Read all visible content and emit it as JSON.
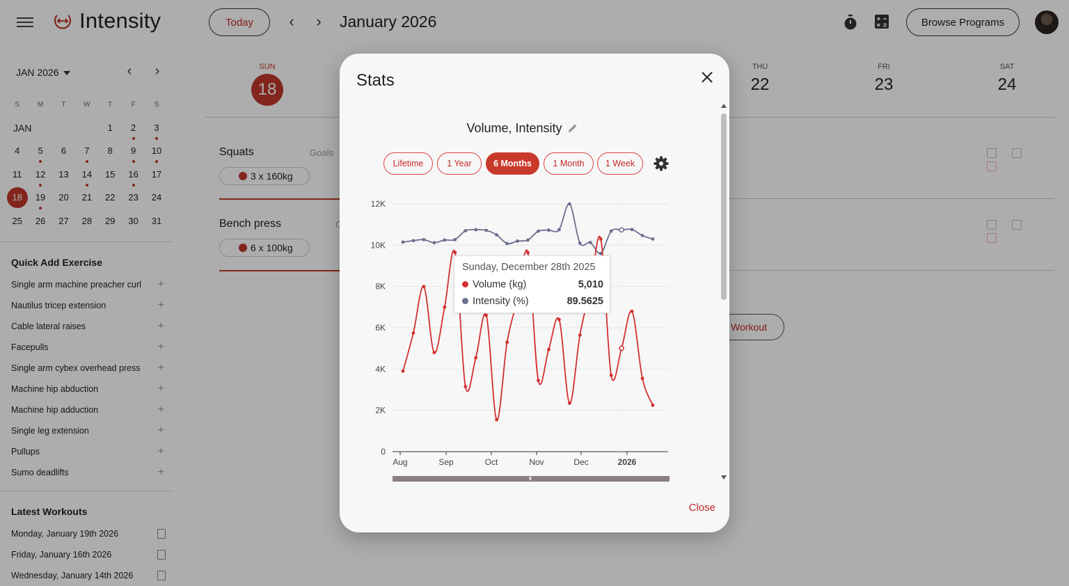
{
  "app": {
    "title": "Intensity",
    "today_label": "Today",
    "month_title": "January 2026",
    "browse_label": "Browse Programs"
  },
  "mini_calendar": {
    "month_label": "JAN 2026",
    "weekdays": [
      "S",
      "M",
      "T",
      "W",
      "T",
      "F",
      "S"
    ],
    "row_label": "JAN",
    "weeks": [
      [
        {
          "d": ""
        },
        {
          "d": ""
        },
        {
          "d": ""
        },
        {
          "d": ""
        },
        {
          "d": "1"
        },
        {
          "d": "2",
          "dot": true
        },
        {
          "d": "3",
          "dot": true
        }
      ],
      [
        {
          "d": "4"
        },
        {
          "d": "5",
          "dot": true
        },
        {
          "d": "6"
        },
        {
          "d": "7",
          "dot": true
        },
        {
          "d": "8"
        },
        {
          "d": "9",
          "dot": true
        },
        {
          "d": "10",
          "dot": true
        }
      ],
      [
        {
          "d": "11"
        },
        {
          "d": "12",
          "dot": true
        },
        {
          "d": "13"
        },
        {
          "d": "14",
          "dot": true
        },
        {
          "d": "15"
        },
        {
          "d": "16",
          "dot": true
        },
        {
          "d": "17"
        }
      ],
      [
        {
          "d": "18",
          "selected": true
        },
        {
          "d": "19",
          "dot": true
        },
        {
          "d": "20"
        },
        {
          "d": "21"
        },
        {
          "d": "22"
        },
        {
          "d": "23"
        },
        {
          "d": "24"
        }
      ],
      [
        {
          "d": "25"
        },
        {
          "d": "26"
        },
        {
          "d": "27"
        },
        {
          "d": "28"
        },
        {
          "d": "29"
        },
        {
          "d": "30"
        },
        {
          "d": "31"
        }
      ]
    ]
  },
  "quick_add": {
    "title": "Quick Add Exercise",
    "items": [
      "Single arm machine preacher curl",
      "Nautilus tricep extension",
      "Cable lateral raises",
      "Facepulls",
      "Single arm cybex overhead press",
      "Machine hip abduction",
      "Machine hip adduction",
      "Single leg extension",
      "Pullups",
      "Sumo deadlifts"
    ]
  },
  "latest_workouts": {
    "title": "Latest Workouts",
    "items": [
      "Monday, January 19th 2026",
      "Friday, January 16th 2026",
      "Wednesday, January 14th 2026"
    ]
  },
  "week_days": [
    {
      "name": "SUN",
      "num": "18",
      "today": true
    },
    {
      "name": "THU",
      "num": "22"
    },
    {
      "name": "FRI",
      "num": "23"
    },
    {
      "name": "SAT",
      "num": "24"
    }
  ],
  "exercises": [
    {
      "name": "Squats",
      "goals": "Goals",
      "set": "3 x 160kg"
    },
    {
      "name": "Bench press",
      "goals": "G",
      "set": "6 x 100kg"
    }
  ],
  "workout_btn": "Workout",
  "modal": {
    "title": "Stats",
    "chart_title": "Volume, Intensity",
    "ranges": [
      "Lifetime",
      "1 Year",
      "6 Months",
      "1 Month",
      "1 Week"
    ],
    "active_range": "6 Months",
    "close_label": "Close",
    "tooltip": {
      "date": "Sunday, December 28th 2025",
      "rows": [
        {
          "label": "Volume (kg)",
          "value": "5,010",
          "color": "#d32f2f"
        },
        {
          "label": "Intensity (%)",
          "value": "89.5625",
          "color": "#6b6f8f"
        }
      ]
    }
  },
  "chart_data": {
    "type": "line",
    "x_labels": [
      "Aug",
      "Sep",
      "Oct",
      "Nov",
      "Dec",
      "2026"
    ],
    "y_ticks": [
      "12K",
      "10K",
      "8K",
      "6K",
      "4K",
      "2K",
      "0"
    ],
    "ylim": [
      0,
      12000
    ],
    "grid": true,
    "series": [
      {
        "name": "Volume (kg)",
        "color": "#d32f2f",
        "values": [
          3900,
          5750,
          8000,
          4800,
          7000,
          9650,
          3150,
          4550,
          6600,
          1550,
          5300,
          7400,
          9650,
          3450,
          4950,
          6400,
          2350,
          5650,
          7900,
          10300,
          3700,
          5010,
          6800,
          3550,
          2250
        ]
      },
      {
        "name": "Intensity (%)",
        "color": "#6b6f8f",
        "values": [
          10150,
          10220,
          10270,
          10120,
          10250,
          10270,
          10700,
          10750,
          10720,
          10500,
          10080,
          10200,
          10250,
          10680,
          10730,
          10750,
          12000,
          10100,
          10130,
          9600,
          10680,
          10740,
          10760,
          10470,
          10300
        ]
      }
    ]
  }
}
